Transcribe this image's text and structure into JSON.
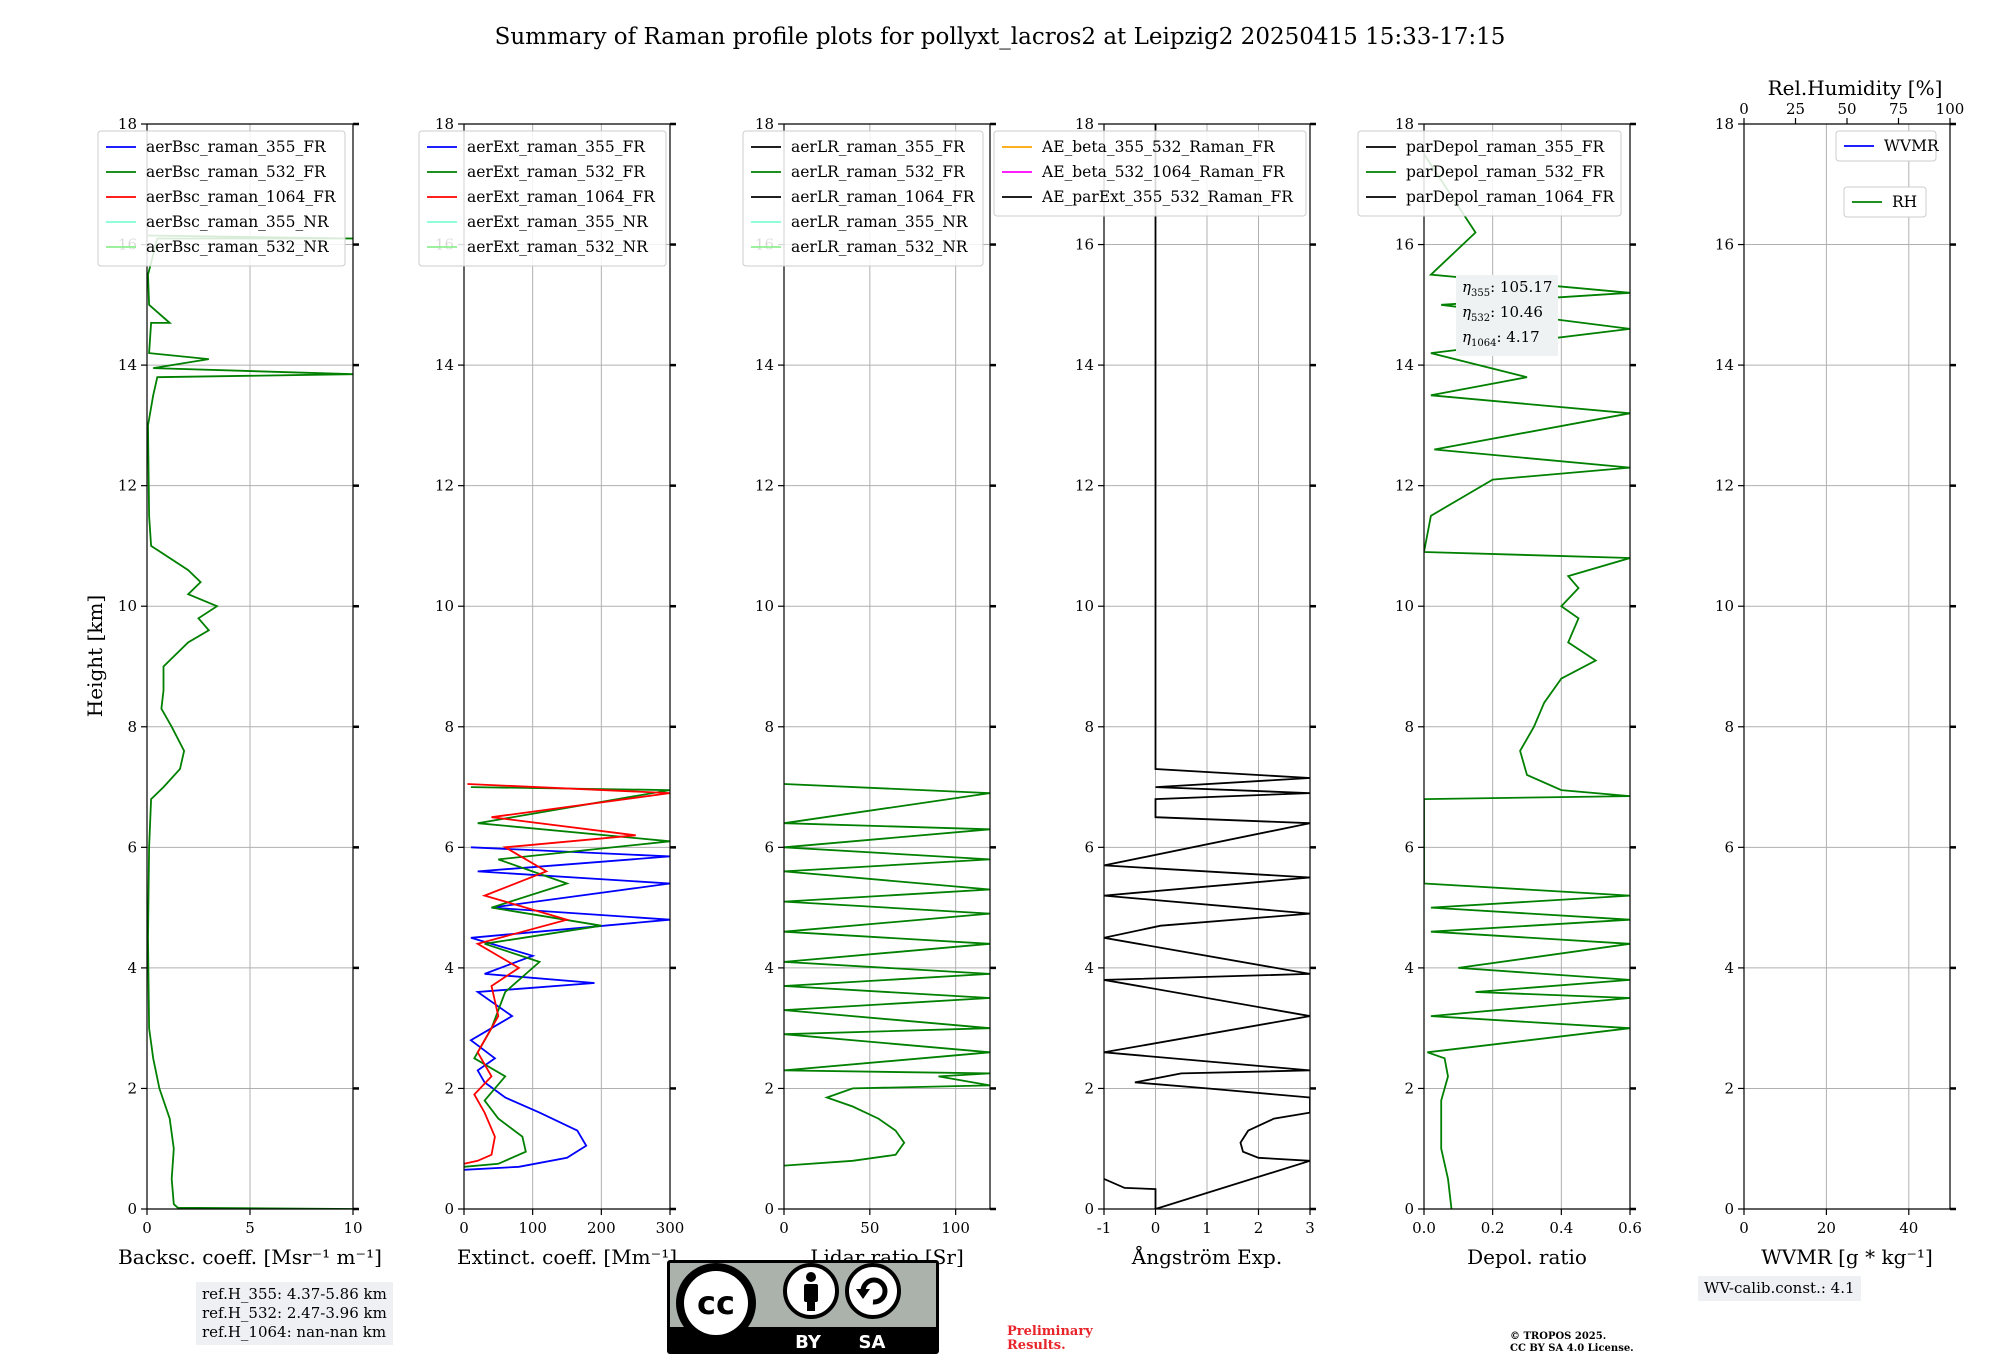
{
  "title": "Summary of Raman profile plots for pollyxt_lacros2 at Leipzig2 20250415 15:33-17:15",
  "ylabel": "Height [km]",
  "y_ticks": [
    0,
    2,
    4,
    6,
    8,
    10,
    12,
    14,
    16,
    18
  ],
  "chart_data": [
    {
      "type": "line",
      "xlabel": "Backsc. coeff. [Msr⁻¹ m⁻¹]",
      "xlim": [
        0,
        10
      ],
      "ylim": [
        0,
        18
      ],
      "x_ticks": [
        0,
        5,
        10
      ],
      "legend": [
        "aerBsc_raman_355_FR",
        "aerBsc_raman_532_FR",
        "aerBsc_raman_1064_FR",
        "aerBsc_raman_355_NR",
        "aerBsc_raman_532_NR"
      ],
      "series": [
        {
          "name": "aerBsc_raman_532_FR",
          "color": "#008000",
          "points": [
            [
              10,
              0
            ],
            [
              1.5,
              0.02
            ],
            [
              1.3,
              0.08
            ],
            [
              1.2,
              0.5
            ],
            [
              1.3,
              1.0
            ],
            [
              1.1,
              1.5
            ],
            [
              0.6,
              2.0
            ],
            [
              0.3,
              2.5
            ],
            [
              0.1,
              3.0
            ],
            [
              0.05,
              4.5
            ],
            [
              0.1,
              6.0
            ],
            [
              0.2,
              6.8
            ],
            [
              0.8,
              7.0
            ],
            [
              1.6,
              7.3
            ],
            [
              1.8,
              7.6
            ],
            [
              1.2,
              8.0
            ],
            [
              0.7,
              8.3
            ],
            [
              0.8,
              8.6
            ],
            [
              0.8,
              9.0
            ],
            [
              2.0,
              9.4
            ],
            [
              3.0,
              9.6
            ],
            [
              2.5,
              9.8
            ],
            [
              3.4,
              10.0
            ],
            [
              2.0,
              10.2
            ],
            [
              2.6,
              10.4
            ],
            [
              2.0,
              10.6
            ],
            [
              0.2,
              11.0
            ],
            [
              0.1,
              11.5
            ],
            [
              0.05,
              13.0
            ],
            [
              0.3,
              13.5
            ],
            [
              0.5,
              13.8
            ],
            [
              10,
              13.85
            ],
            [
              0.3,
              13.95
            ],
            [
              3,
              14.1
            ],
            [
              0.1,
              14.2
            ],
            [
              0.2,
              14.7
            ],
            [
              1.1,
              14.7
            ],
            [
              0.1,
              15.0
            ],
            [
              0.05,
              15.5
            ],
            [
              0.5,
              16.1
            ],
            [
              10,
              16.1
            ],
            [
              0.05,
              16.15
            ]
          ]
        },
        {
          "name": "aerBsc_raman_355_FR",
          "color": "#0000ff",
          "points": []
        },
        {
          "name": "aerBsc_raman_1064_FR",
          "color": "#ff0000",
          "points": []
        }
      ],
      "annotation": [
        "ref.H_355: 4.37-5.86 km",
        "ref.H_532: 2.47-3.96 km",
        "ref.H_1064: nan-nan km"
      ]
    },
    {
      "type": "line",
      "xlabel": "Extinct. coeff. [Mm⁻¹]",
      "xlim": [
        0,
        300
      ],
      "ylim": [
        0,
        18
      ],
      "x_ticks": [
        0,
        100,
        200,
        300
      ],
      "legend": [
        "aerExt_raman_355_FR",
        "aerExt_raman_532_FR",
        "aerExt_raman_1064_FR",
        "aerExt_raman_355_NR",
        "aerExt_raman_532_NR"
      ],
      "series": [
        {
          "name": "aerExt_raman_355_FR",
          "color": "#0000ff",
          "points": [
            [
              0,
              0.65
            ],
            [
              80,
              0.7
            ],
            [
              150,
              0.85
            ],
            [
              178,
              1.05
            ],
            [
              165,
              1.3
            ],
            [
              110,
              1.6
            ],
            [
              60,
              1.85
            ],
            [
              30,
              2.1
            ],
            [
              20,
              2.3
            ],
            [
              45,
              2.5
            ],
            [
              10,
              2.8
            ],
            [
              70,
              3.2
            ],
            [
              20,
              3.6
            ],
            [
              190,
              3.75
            ],
            [
              30,
              3.9
            ],
            [
              100,
              4.2
            ],
            [
              10,
              4.5
            ],
            [
              300,
              4.8
            ],
            [
              40,
              5.0
            ],
            [
              300,
              5.4
            ],
            [
              20,
              5.6
            ],
            [
              300,
              5.85
            ],
            [
              10,
              6.0
            ]
          ]
        },
        {
          "name": "aerExt_raman_532_FR",
          "color": "#008000",
          "points": [
            [
              0,
              0.7
            ],
            [
              50,
              0.75
            ],
            [
              90,
              0.95
            ],
            [
              85,
              1.2
            ],
            [
              50,
              1.5
            ],
            [
              30,
              1.8
            ],
            [
              60,
              2.2
            ],
            [
              15,
              2.5
            ],
            [
              40,
              3.0
            ],
            [
              60,
              3.6
            ],
            [
              110,
              4.1
            ],
            [
              30,
              4.4
            ],
            [
              200,
              4.7
            ],
            [
              40,
              5.0
            ],
            [
              150,
              5.4
            ],
            [
              50,
              5.8
            ],
            [
              300,
              6.1
            ],
            [
              20,
              6.4
            ],
            [
              300,
              6.95
            ],
            [
              10,
              7.0
            ]
          ]
        },
        {
          "name": "aerExt_raman_1064_FR",
          "color": "#ff0000",
          "points": [
            [
              0,
              0.75
            ],
            [
              20,
              0.8
            ],
            [
              40,
              0.9
            ],
            [
              45,
              1.2
            ],
            [
              30,
              1.6
            ],
            [
              15,
              1.9
            ],
            [
              40,
              2.2
            ],
            [
              20,
              2.6
            ],
            [
              50,
              3.2
            ],
            [
              40,
              3.7
            ],
            [
              80,
              4.0
            ],
            [
              20,
              4.4
            ],
            [
              150,
              4.8
            ],
            [
              30,
              5.2
            ],
            [
              120,
              5.6
            ],
            [
              60,
              6.0
            ],
            [
              250,
              6.2
            ],
            [
              40,
              6.5
            ],
            [
              300,
              6.9
            ],
            [
              5,
              7.05
            ]
          ]
        }
      ]
    },
    {
      "type": "line",
      "xlabel": "Lidar ratio [Sr]",
      "xlim": [
        0,
        120
      ],
      "ylim": [
        0,
        18
      ],
      "x_ticks": [
        0,
        50,
        100
      ],
      "legend": [
        "aerLR_raman_355_FR",
        "aerLR_raman_532_FR",
        "aerLR_raman_1064_FR",
        "aerLR_raman_355_NR",
        "aerLR_raman_532_NR"
      ],
      "series": [
        {
          "name": "aerLR_raman_532_FR",
          "color": "#008000",
          "points": [
            [
              0,
              0.72
            ],
            [
              40,
              0.8
            ],
            [
              65,
              0.9
            ],
            [
              70,
              1.1
            ],
            [
              65,
              1.3
            ],
            [
              55,
              1.5
            ],
            [
              40,
              1.7
            ],
            [
              25,
              1.85
            ],
            [
              40,
              2.0
            ],
            [
              120,
              2.05
            ],
            [
              90,
              2.2
            ],
            [
              120,
              2.25
            ],
            [
              0,
              2.3
            ],
            [
              120,
              2.6
            ],
            [
              0,
              2.9
            ],
            [
              120,
              3.0
            ],
            [
              0,
              3.3
            ],
            [
              120,
              3.5
            ],
            [
              0,
              3.7
            ],
            [
              120,
              3.9
            ],
            [
              0,
              4.1
            ],
            [
              120,
              4.4
            ],
            [
              0,
              4.6
            ],
            [
              120,
              4.9
            ],
            [
              0,
              5.1
            ],
            [
              120,
              5.3
            ],
            [
              0,
              5.6
            ],
            [
              120,
              5.8
            ],
            [
              0,
              6.0
            ],
            [
              120,
              6.3
            ],
            [
              0,
              6.4
            ],
            [
              120,
              6.9
            ],
            [
              0,
              7.05
            ]
          ]
        }
      ]
    },
    {
      "type": "line",
      "xlabel": "Ångström Exp.",
      "xlim": [
        -1,
        3
      ],
      "ylim": [
        0,
        18
      ],
      "x_ticks": [
        -1,
        0,
        1,
        2,
        3
      ],
      "legend": [
        "AE_beta_355_532_Raman_FR",
        "AE_beta_532_1064_Raman_FR",
        "AE_parExt_355_532_Raman_FR"
      ],
      "series": [
        {
          "name": "AE_parExt_355_532_Raman_FR",
          "color": "#000000",
          "points": [
            [
              -1,
              0.5
            ],
            [
              -0.6,
              0.35
            ],
            [
              0,
              0.33
            ],
            [
              0,
              0
            ],
            [
              3,
              0.8
            ],
            [
              2,
              0.85
            ],
            [
              1.7,
              0.95
            ],
            [
              1.65,
              1.1
            ],
            [
              1.8,
              1.3
            ],
            [
              2.3,
              1.5
            ],
            [
              3,
              1.6
            ],
            [
              3,
              1.85
            ],
            [
              1,
              2.0
            ],
            [
              -0.4,
              2.1
            ],
            [
              0.5,
              2.25
            ],
            [
              3,
              2.3
            ],
            [
              -1,
              2.6
            ],
            [
              3,
              3.2
            ],
            [
              -1,
              3.8
            ],
            [
              3,
              3.9
            ],
            [
              -1,
              4.5
            ],
            [
              0.1,
              4.7
            ],
            [
              3,
              4.9
            ],
            [
              -1,
              5.2
            ],
            [
              3,
              5.5
            ],
            [
              -1,
              5.7
            ],
            [
              3,
              6.4
            ],
            [
              0,
              6.5
            ],
            [
              0,
              6.8
            ],
            [
              3,
              6.9
            ],
            [
              0,
              7.0
            ],
            [
              3,
              7.15
            ],
            [
              0,
              7.3
            ],
            [
              0,
              18
            ]
          ]
        },
        {
          "name": "AE_beta_355_532_Raman_FR",
          "color": "#ffa500",
          "points": []
        },
        {
          "name": "AE_beta_532_1064_Raman_FR",
          "color": "#ff00ff",
          "points": []
        }
      ]
    },
    {
      "type": "line",
      "xlabel": "Depol. ratio",
      "xlim": [
        0,
        0.6
      ],
      "ylim": [
        0,
        18
      ],
      "x_ticks": [
        0.0,
        0.2,
        0.4,
        0.6
      ],
      "legend": [
        "parDepol_raman_355_FR",
        "parDepol_raman_532_FR",
        "parDepol_raman_1064_FR"
      ],
      "series": [
        {
          "name": "parDepol_raman_532_FR",
          "color": "#008000",
          "points": [
            [
              0.08,
              0
            ],
            [
              0.07,
              0.5
            ],
            [
              0.05,
              1.0
            ],
            [
              0.05,
              1.8
            ],
            [
              0.07,
              2.2
            ],
            [
              0.06,
              2.5
            ],
            [
              0.01,
              2.6
            ],
            [
              0.6,
              3.0
            ],
            [
              0.02,
              3.2
            ],
            [
              0.6,
              3.5
            ],
            [
              0.15,
              3.6
            ],
            [
              0.6,
              3.8
            ],
            [
              0.1,
              4.0
            ],
            [
              0.6,
              4.4
            ],
            [
              0.02,
              4.6
            ],
            [
              0.6,
              4.8
            ],
            [
              0.02,
              5.0
            ],
            [
              0.6,
              5.2
            ],
            [
              0.0,
              5.4
            ],
            [
              0.0,
              6.8
            ],
            [
              0.6,
              6.85
            ],
            [
              0.4,
              6.95
            ],
            [
              0.3,
              7.2
            ],
            [
              0.28,
              7.6
            ],
            [
              0.32,
              8.0
            ],
            [
              0.35,
              8.4
            ],
            [
              0.4,
              8.8
            ],
            [
              0.5,
              9.1
            ],
            [
              0.42,
              9.4
            ],
            [
              0.45,
              9.8
            ],
            [
              0.4,
              10.0
            ],
            [
              0.45,
              10.3
            ],
            [
              0.42,
              10.5
            ],
            [
              0.6,
              10.8
            ],
            [
              0.0,
              10.9
            ],
            [
              0.02,
              11.5
            ],
            [
              0.2,
              12.1
            ],
            [
              0.6,
              12.3
            ],
            [
              0.03,
              12.6
            ],
            [
              0.6,
              13.2
            ],
            [
              0.02,
              13.5
            ],
            [
              0.3,
              13.8
            ],
            [
              0.02,
              14.2
            ],
            [
              0.6,
              14.6
            ],
            [
              0.05,
              15.0
            ],
            [
              0.6,
              15.2
            ],
            [
              0.02,
              15.5
            ],
            [
              0.15,
              16.2
            ],
            [
              0.0,
              17.5
            ]
          ]
        }
      ],
      "annotation": [
        {
          "symbol": "η",
          "sub": "355",
          "value": "105.17"
        },
        {
          "symbol": "η",
          "sub": "532",
          "value": "10.46"
        },
        {
          "symbol": "η",
          "sub": "1064",
          "value": "4.17"
        }
      ]
    },
    {
      "type": "line",
      "xlabel": "WVMR [g * kg⁻¹]",
      "xlim": [
        0,
        50
      ],
      "ylim": [
        0,
        18
      ],
      "x_ticks": [
        0,
        20,
        40
      ],
      "top_axis": {
        "label": "Rel.Humidity [%]",
        "ticks": [
          0,
          25,
          50,
          75,
          100
        ]
      },
      "legend": [
        "WVMR",
        "RH"
      ],
      "series": [
        {
          "name": "WVMR",
          "color": "#0000ff",
          "points": []
        },
        {
          "name": "RH",
          "color": "#008000",
          "points": []
        }
      ],
      "annotation": [
        "WV-calib.const.: 4.1"
      ]
    }
  ],
  "license_badge": {
    "cc": "cc",
    "by": "BY",
    "sa": "SA"
  },
  "preliminary_text": [
    "Preliminary",
    "Results."
  ],
  "copyright_text": [
    "© TROPOS 2025.",
    "CC BY SA 4.0 License."
  ]
}
